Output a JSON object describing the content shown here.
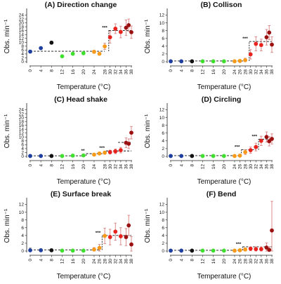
{
  "figure": {
    "colors": {
      "blue": "#1f3f9e",
      "black": "#111111",
      "green": "#3fdf2f",
      "orange": "#f59a1a",
      "red": "#e8231d",
      "darkred": "#9b1010",
      "errorbar": "#d98080",
      "gray_errorbar": "#888888"
    }
  },
  "chart_data": [
    {
      "type": "scatter",
      "title": "(A) Direction change",
      "ylabel": "Obs. min⁻¹",
      "xlabel": "Temperature (°C)",
      "x_ticks": [
        0,
        4,
        8,
        12,
        16,
        20,
        24,
        28,
        30,
        32,
        34,
        36,
        38
      ],
      "ylim": [
        0,
        26
      ],
      "y_ticks": [
        0,
        2,
        4,
        6,
        8,
        10,
        12,
        14,
        16,
        18,
        20,
        22,
        24
      ],
      "significance": "***",
      "points": [
        {
          "x": 0,
          "y": 5.2,
          "err": 0.5,
          "color": "blue"
        },
        {
          "x": 4,
          "y": 7.0,
          "err": 0.5,
          "color": "blue"
        },
        {
          "x": 8,
          "y": 9.8,
          "err": 0.8,
          "color": "black"
        },
        {
          "x": 12,
          "y": 2.8,
          "err": 0.4,
          "color": "green"
        },
        {
          "x": 16,
          "y": 4.1,
          "err": 0.6,
          "color": "green"
        },
        {
          "x": 20,
          "y": 4.4,
          "err": 0.8,
          "color": "green"
        },
        {
          "x": 24,
          "y": 5.1,
          "err": 0.8,
          "color": "orange"
        },
        {
          "x": 26,
          "y": 4.1,
          "err": 0.6,
          "color": "orange"
        },
        {
          "x": 28,
          "y": 7.9,
          "err": 1.6,
          "color": "orange"
        },
        {
          "x": 30,
          "y": 12.6,
          "err": 3.0,
          "color": "red"
        },
        {
          "x": 32,
          "y": 17.0,
          "err": 2.5,
          "color": "red"
        },
        {
          "x": 34,
          "y": 15.3,
          "err": 3.0,
          "color": "red"
        },
        {
          "x": 36,
          "y": 17.5,
          "err": 4.0,
          "color": "darkred"
        },
        {
          "x": 37,
          "y": 18.8,
          "err": 3.2,
          "color": "darkred"
        },
        {
          "x": 38,
          "y": 15.2,
          "err": 3.2,
          "color": "darkred"
        }
      ],
      "mean_lines": [
        {
          "x0": 0,
          "x1": 28,
          "y": 5.4
        },
        {
          "x0": 29.5,
          "x1": 38,
          "y": 16.1
        }
      ],
      "sig_bracket": {
        "x0": 28,
        "x1": 29.5,
        "y0": 5.4,
        "y1": 16.1
      }
    },
    {
      "type": "scatter",
      "title": "(B) Collison",
      "ylabel": "Obs. min⁻¹",
      "xlabel": "Temperature (°C)",
      "x_ticks": [
        0,
        4,
        8,
        12,
        16,
        20,
        24,
        26,
        28,
        30,
        32,
        34,
        36,
        38
      ],
      "ylim": [
        0,
        13
      ],
      "y_ticks": [
        0,
        2,
        4,
        6,
        8,
        10,
        12
      ],
      "significance": "***",
      "points": [
        {
          "x": 0,
          "y": 0.1,
          "err": 0.1,
          "color": "blue"
        },
        {
          "x": 4,
          "y": 0.1,
          "err": 0.1,
          "color": "blue"
        },
        {
          "x": 8,
          "y": 0.1,
          "err": 0.1,
          "color": "black"
        },
        {
          "x": 12,
          "y": 0.1,
          "err": 0.1,
          "color": "green"
        },
        {
          "x": 16,
          "y": 0.1,
          "err": 0.1,
          "color": "green"
        },
        {
          "x": 20,
          "y": 0.1,
          "err": 0.1,
          "color": "green"
        },
        {
          "x": 24,
          "y": 0.1,
          "err": 0.1,
          "color": "orange"
        },
        {
          "x": 26,
          "y": 0.2,
          "err": 0.3,
          "color": "orange"
        },
        {
          "x": 28,
          "y": 0.4,
          "err": 0.5,
          "color": "orange"
        },
        {
          "x": 30,
          "y": 1.9,
          "err": 1.2,
          "color": "red"
        },
        {
          "x": 32,
          "y": 4.6,
          "err": 1.8,
          "color": "red"
        },
        {
          "x": 34,
          "y": 4.3,
          "err": 1.5,
          "color": "red"
        },
        {
          "x": 36,
          "y": 6.3,
          "err": 2.0,
          "color": "darkred"
        },
        {
          "x": 37,
          "y": 7.5,
          "err": 1.8,
          "color": "darkred"
        },
        {
          "x": 38,
          "y": 4.4,
          "err": 2.0,
          "color": "darkred"
        }
      ],
      "mean_lines": [
        {
          "x0": 0,
          "x1": 28,
          "y": 0.2
        },
        {
          "x0": 29.5,
          "x1": 38,
          "y": 5.2
        }
      ],
      "sig_bracket": {
        "x0": 28,
        "x1": 29.5,
        "y0": 0.2,
        "y1": 5.2
      }
    },
    {
      "type": "scatter",
      "title": "(C) Head shake",
      "ylabel": "Obs. min⁻¹",
      "xlabel": "Temperature (°C)",
      "x_ticks": [
        0,
        4,
        8,
        12,
        16,
        20,
        24,
        28,
        30,
        32,
        34,
        36,
        38
      ],
      "ylim": [
        0,
        26
      ],
      "y_ticks": [
        0,
        2,
        4,
        6,
        8,
        10,
        12,
        14,
        16,
        18,
        20,
        22,
        24
      ],
      "significance": [
        "**",
        "***"
      ],
      "points": [
        {
          "x": 0,
          "y": 0.2,
          "err": 0.2,
          "color": "blue"
        },
        {
          "x": 4,
          "y": 0.2,
          "err": 0.2,
          "color": "blue"
        },
        {
          "x": 8,
          "y": 0.2,
          "err": 0.2,
          "color": "black"
        },
        {
          "x": 12,
          "y": 0.2,
          "err": 0.2,
          "color": "green"
        },
        {
          "x": 16,
          "y": 0.4,
          "err": 0.3,
          "color": "green"
        },
        {
          "x": 20,
          "y": 0.5,
          "err": 0.4,
          "color": "green"
        },
        {
          "x": 24,
          "y": 0.9,
          "err": 0.5,
          "color": "orange"
        },
        {
          "x": 26,
          "y": 1.5,
          "err": 0.6,
          "color": "orange"
        },
        {
          "x": 28,
          "y": 1.9,
          "err": 0.8,
          "color": "orange"
        },
        {
          "x": 30,
          "y": 2.2,
          "err": 1.0,
          "color": "red"
        },
        {
          "x": 32,
          "y": 2.6,
          "err": 1.2,
          "color": "red"
        },
        {
          "x": 34,
          "y": 3.2,
          "err": 1.4,
          "color": "red"
        },
        {
          "x": 36,
          "y": 7.0,
          "err": 2.5,
          "color": "darkred"
        },
        {
          "x": 37,
          "y": 6.5,
          "err": 2.5,
          "color": "darkred"
        },
        {
          "x": 38,
          "y": 12.2,
          "err": 3.2,
          "color": "darkred"
        }
      ],
      "mean_lines": [
        {
          "x0": 0,
          "x1": 20,
          "y": 0.3
        },
        {
          "x0": 21,
          "x1": 28,
          "y": 1.4
        },
        {
          "x0": 28.5,
          "x1": 38,
          "y": 2.8
        },
        {
          "x0": 33,
          "x1": 38,
          "y": 7.2
        }
      ],
      "sig_brackets": [
        {
          "x0": 20,
          "x1": 21,
          "y0": 0.3,
          "y1": 1.4,
          "label": "**"
        },
        {
          "x0": 27,
          "x1": 28.5,
          "y0": 1.4,
          "y1": 2.8,
          "label": "***"
        }
      ]
    },
    {
      "type": "scatter",
      "title": "(D) Circling",
      "ylabel": "Obs. min⁻¹",
      "xlabel": "Temperature (°C)",
      "x_ticks": [
        0,
        4,
        8,
        12,
        16,
        20,
        24,
        26,
        28,
        30,
        32,
        34,
        36,
        38
      ],
      "ylim": [
        0,
        13
      ],
      "y_ticks": [
        0,
        2,
        4,
        6,
        8,
        10,
        12
      ],
      "significance": [
        "***",
        "***"
      ],
      "points": [
        {
          "x": 0,
          "y": 0.1,
          "err": 0.1,
          "color": "blue"
        },
        {
          "x": 4,
          "y": 0.1,
          "err": 0.1,
          "color": "blue"
        },
        {
          "x": 8,
          "y": 0.1,
          "err": 0.1,
          "color": "black"
        },
        {
          "x": 12,
          "y": 0.1,
          "err": 0.1,
          "color": "green"
        },
        {
          "x": 16,
          "y": 0.1,
          "err": 0.1,
          "color": "green"
        },
        {
          "x": 20,
          "y": 0.1,
          "err": 0.1,
          "color": "green"
        },
        {
          "x": 24,
          "y": 0.1,
          "err": 0.1,
          "color": "orange"
        },
        {
          "x": 26,
          "y": 0.2,
          "err": 0.2,
          "color": "orange"
        },
        {
          "x": 28,
          "y": 1.1,
          "err": 0.6,
          "color": "orange"
        },
        {
          "x": 30,
          "y": 1.6,
          "err": 0.8,
          "color": "red"
        },
        {
          "x": 32,
          "y": 2.4,
          "err": 1.0,
          "color": "red"
        },
        {
          "x": 34,
          "y": 4.0,
          "err": 1.2,
          "color": "red"
        },
        {
          "x": 36,
          "y": 5.0,
          "err": 1.3,
          "color": "darkred"
        },
        {
          "x": 37,
          "y": 3.9,
          "err": 1.2,
          "color": "darkred"
        },
        {
          "x": 38,
          "y": 4.5,
          "err": 1.3,
          "color": "darkred"
        }
      ],
      "mean_lines": [
        {
          "x0": 0,
          "x1": 26,
          "y": 0.2
        },
        {
          "x0": 26.5,
          "x1": 32,
          "y": 1.7
        },
        {
          "x0": 33,
          "x1": 38,
          "y": 4.4
        }
      ],
      "sig_brackets": [
        {
          "x0": 26,
          "x1": 26.5,
          "y0": 0.2,
          "y1": 1.7,
          "label": "***"
        },
        {
          "x0": 32,
          "x1": 33,
          "y0": 1.7,
          "y1": 4.4,
          "label": "***"
        }
      ]
    },
    {
      "type": "scatter",
      "title": "(E) Surface break",
      "ylabel": "Obs. min⁻¹",
      "xlabel": "Temperature (°C)",
      "x_ticks": [
        0,
        4,
        8,
        12,
        16,
        20,
        24,
        26,
        28,
        30,
        32,
        34,
        36,
        38
      ],
      "ylim": [
        0,
        13
      ],
      "y_ticks": [
        0,
        2,
        4,
        6,
        8,
        10,
        12
      ],
      "significance": "***",
      "points": [
        {
          "x": 0,
          "y": 0.2,
          "err": 0.6,
          "color": "blue"
        },
        {
          "x": 4,
          "y": 0.2,
          "err": 0.4,
          "color": "blue"
        },
        {
          "x": 8,
          "y": 0.2,
          "err": 0.3,
          "color": "black"
        },
        {
          "x": 12,
          "y": 0.1,
          "err": 0.1,
          "color": "green"
        },
        {
          "x": 16,
          "y": 0.1,
          "err": 0.1,
          "color": "green"
        },
        {
          "x": 20,
          "y": 0.1,
          "err": 0.1,
          "color": "green"
        },
        {
          "x": 24,
          "y": 0.4,
          "err": 0.5,
          "color": "orange"
        },
        {
          "x": 26,
          "y": 0.8,
          "err": 0.9,
          "color": "orange"
        },
        {
          "x": 28,
          "y": 3.9,
          "err": 2.0,
          "color": "orange"
        },
        {
          "x": 30,
          "y": 3.6,
          "err": 2.0,
          "color": "red"
        },
        {
          "x": 32,
          "y": 5.0,
          "err": 2.2,
          "color": "red"
        },
        {
          "x": 34,
          "y": 3.8,
          "err": 2.2,
          "color": "red"
        },
        {
          "x": 36,
          "y": 3.6,
          "err": 2.2,
          "color": "darkred"
        },
        {
          "x": 37,
          "y": 6.6,
          "err": 2.6,
          "color": "darkred"
        },
        {
          "x": 38,
          "y": 1.7,
          "err": 2.0,
          "color": "darkred"
        }
      ],
      "mean_lines": [
        {
          "x0": 0,
          "x1": 26,
          "y": 0.3
        },
        {
          "x0": 27,
          "x1": 38,
          "y": 4.0
        }
      ],
      "sig_bracket": {
        "x0": 26,
        "x1": 27,
        "y0": 0.3,
        "y1": 4.0
      }
    },
    {
      "type": "scatter",
      "title": "(F) Bend",
      "ylabel": "Obs. min⁻¹",
      "xlabel": "Temperature (°C)",
      "x_ticks": [
        0,
        4,
        8,
        12,
        16,
        20,
        24,
        26,
        28,
        30,
        32,
        34,
        36,
        38
      ],
      "ylim": [
        0,
        13
      ],
      "y_ticks": [
        0,
        2,
        4,
        6,
        8,
        10,
        12
      ],
      "significance": "***",
      "points": [
        {
          "x": 0,
          "y": 0.1,
          "err": 0.1,
          "color": "blue"
        },
        {
          "x": 4,
          "y": 0.1,
          "err": 0.1,
          "color": "blue"
        },
        {
          "x": 8,
          "y": 0.1,
          "err": 0.1,
          "color": "black"
        },
        {
          "x": 12,
          "y": 0.1,
          "err": 0.1,
          "color": "green"
        },
        {
          "x": 16,
          "y": 0.1,
          "err": 0.1,
          "color": "green"
        },
        {
          "x": 20,
          "y": 0.1,
          "err": 0.1,
          "color": "green"
        },
        {
          "x": 24,
          "y": 0.1,
          "err": 0.1,
          "color": "orange"
        },
        {
          "x": 26,
          "y": 0.2,
          "err": 0.2,
          "color": "orange"
        },
        {
          "x": 28,
          "y": 0.4,
          "err": 0.4,
          "color": "orange"
        },
        {
          "x": 30,
          "y": 0.6,
          "err": 0.5,
          "color": "red"
        },
        {
          "x": 32,
          "y": 0.5,
          "err": 0.6,
          "color": "red"
        },
        {
          "x": 34,
          "y": 0.5,
          "err": 0.6,
          "color": "red"
        },
        {
          "x": 36,
          "y": 0.9,
          "err": 1.2,
          "color": "darkred"
        },
        {
          "x": 37,
          "y": 0.3,
          "err": 0.8,
          "color": "darkred"
        },
        {
          "x": 38,
          "y": 5.3,
          "err": 7.5,
          "color": "darkred"
        }
      ],
      "mean_lines": [
        {
          "x0": 0,
          "x1": 26,
          "y": 0.2
        },
        {
          "x0": 27,
          "x1": 38,
          "y": 1.1
        }
      ],
      "sig_bracket": {
        "x0": 26,
        "x1": 27,
        "y0": 0.2,
        "y1": 1.1
      }
    }
  ]
}
